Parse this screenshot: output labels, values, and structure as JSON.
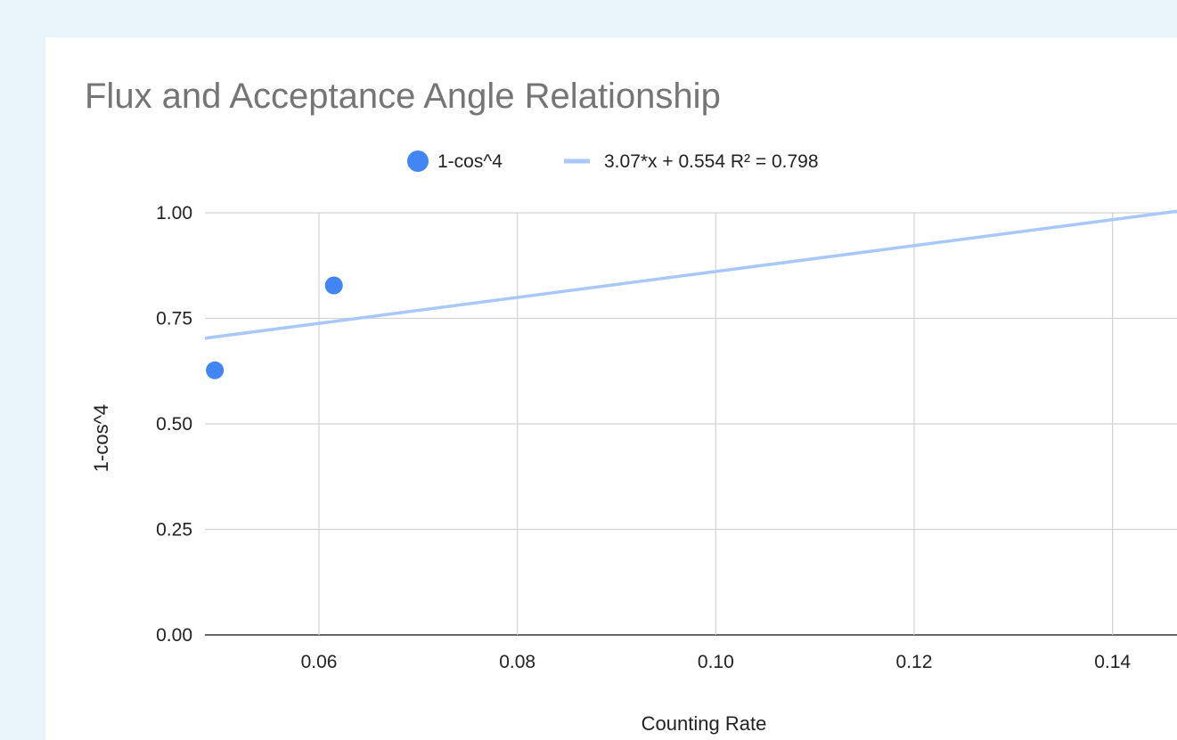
{
  "chart_data": {
    "type": "scatter",
    "title": "Flux and Acceptance Angle Relationship",
    "xlabel": "Counting Rate",
    "ylabel": "1-cos^4",
    "xlim": [
      0.0485,
      0.1465
    ],
    "ylim": [
      0,
      1
    ],
    "x_ticks": [
      "0.06",
      "0.08",
      "0.10",
      "0.12",
      "0.14"
    ],
    "x_tick_values": [
      0.06,
      0.08,
      0.1,
      0.12,
      0.14
    ],
    "y_ticks": [
      "0.00",
      "0.25",
      "0.50",
      "0.75",
      "1.00"
    ],
    "y_tick_values": [
      0,
      0.25,
      0.5,
      0.75,
      1.0
    ],
    "grid": true,
    "legend_position": "top",
    "series": [
      {
        "name": "1-cos^4",
        "type": "scatter",
        "color": "#4285f4",
        "points": [
          {
            "x": 0.0495,
            "y": 0.627
          },
          {
            "x": 0.0615,
            "y": 0.828
          }
        ]
      },
      {
        "name": "3.07*x + 0.554 R² = 0.798",
        "type": "trendline",
        "color": "#a8c7fa",
        "slope": 3.07,
        "intercept": 0.554
      }
    ]
  }
}
